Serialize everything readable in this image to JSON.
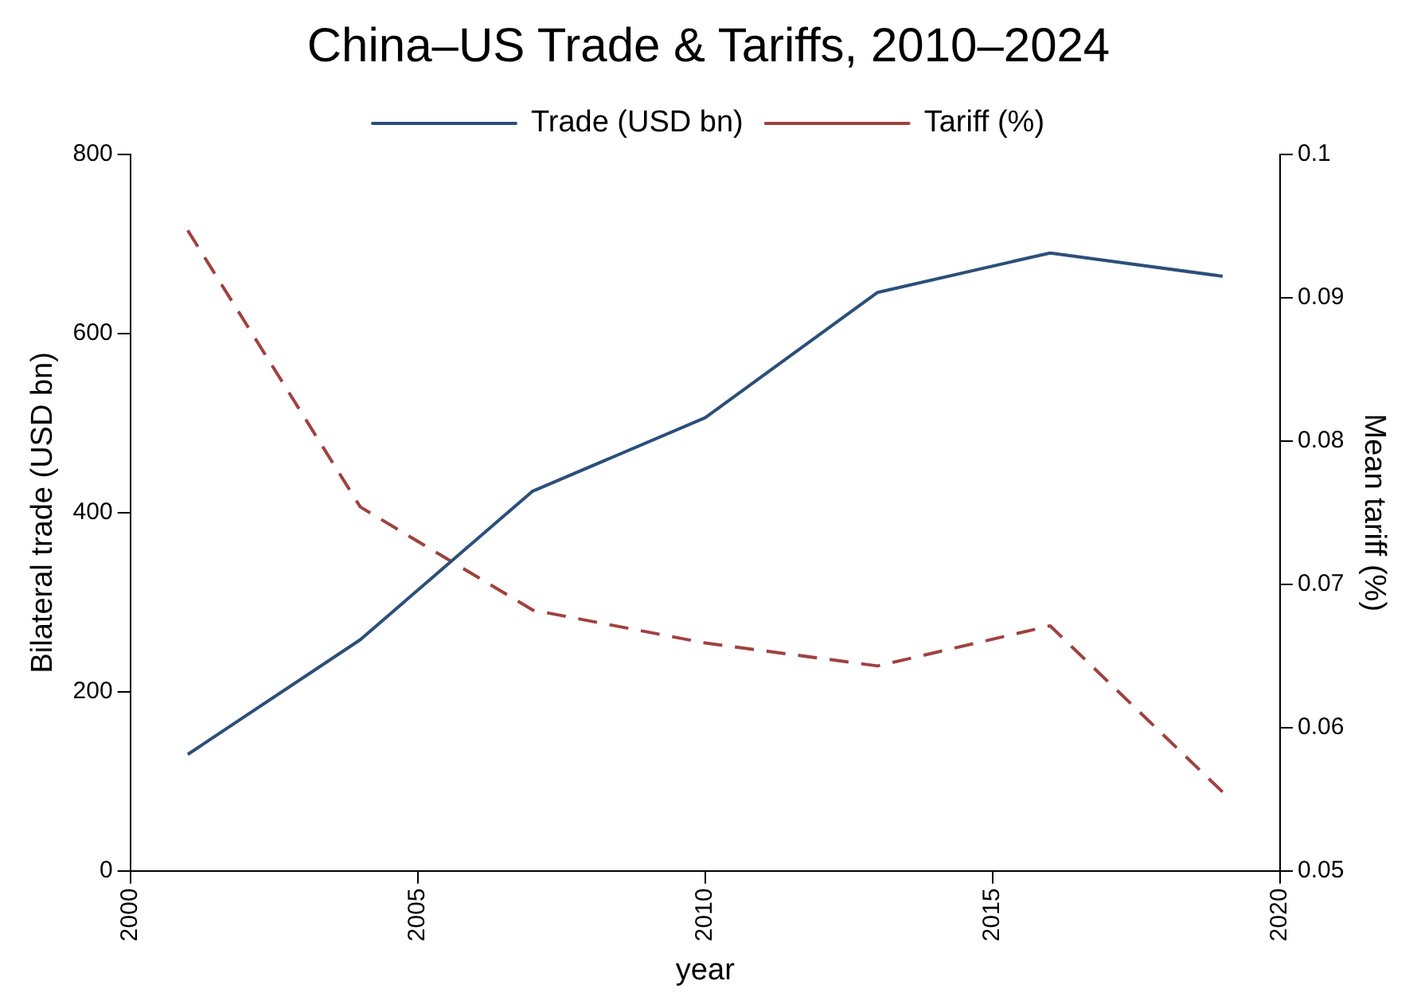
{
  "chart_data": {
    "type": "line",
    "title": "China–US Trade & Tariffs, 2010–2024",
    "xlabel": "year",
    "ylabel": "Bilateral trade (USD bn)",
    "y2label": "Mean tariff (%)",
    "x": [
      2001,
      2004,
      2007,
      2010,
      2013,
      2016,
      2019
    ],
    "series": [
      {
        "name": "Trade (USD bn)",
        "color": "#2b4f7a",
        "values": [
          130,
          258,
          424,
          506,
          646,
          690,
          664
        ],
        "line_style": "solid"
      },
      {
        "name": "Tariff (%)",
        "color": "#a0413f",
        "values": [
          0.0947,
          0.0754,
          0.0682,
          0.0659,
          0.0643,
          0.0671,
          0.0555
        ],
        "axis": "y2",
        "line_style": "dashed"
      }
    ],
    "xlim": [
      2000,
      2020
    ],
    "xticks": [
      2000,
      2005,
      2010,
      2015,
      2020
    ],
    "ylim": [
      0,
      800
    ],
    "yticks": [
      0,
      200,
      400,
      600,
      800
    ],
    "y2lim": [
      0.05,
      0.1
    ],
    "y2ticks": [
      0.05,
      0.06,
      0.07,
      0.08,
      0.09,
      0.1
    ],
    "grid": false,
    "legend": "top",
    "marker": "none"
  }
}
